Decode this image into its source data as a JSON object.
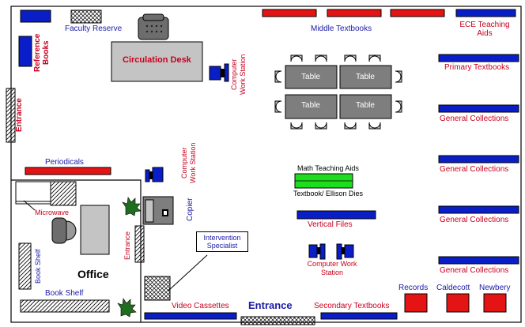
{
  "labels": {
    "faculty_reserve": "Faculty Reserve",
    "reference_books": "Reference Books",
    "entrance_left": "Entrance",
    "circulation_desk": "Circulation Desk",
    "computer_ws_top": "Computer Work Station",
    "middle_textbooks": "Middle Textbooks",
    "ece_teaching_aids": "ECE Teaching Aids",
    "primary_textbooks": "Primary Textbooks",
    "general_collections": "General Collections",
    "table": "Table",
    "periodicals": "Periodicals",
    "microwave": "Microwave",
    "computer_ws_mid": "Computer Work Station",
    "copier": "Copier",
    "entrance_office": "Entrance",
    "intervention_specialist": "Intervention Specialist",
    "book_shelf_vertical": "Book Shelf",
    "office": "Office",
    "book_shelf_bottom": "Book Shelf",
    "math_teaching_aids": "Math Teaching Aids",
    "textbook_ellison_dies": "Textbook/ Ellison Dies",
    "vertical_files": "Vertical Files",
    "computer_ws_bottom": "Computer Work Station",
    "records": "Records",
    "caldecott": "Caldecott",
    "newbery": "Newbery",
    "video_cassettes": "Video Cassettes",
    "entrance_main": "Entrance",
    "secondary_textbooks": "Secondary Textbooks"
  },
  "colors": {
    "shelf_blue": "#0a1ec8",
    "shelf_red": "#e41414",
    "desk_gray": "#c4c4c4",
    "table_gray": "#7e7e7e",
    "text_blue": "#1a1aa6",
    "text_red": "#c8001e",
    "math_green": "#1edc1e"
  }
}
